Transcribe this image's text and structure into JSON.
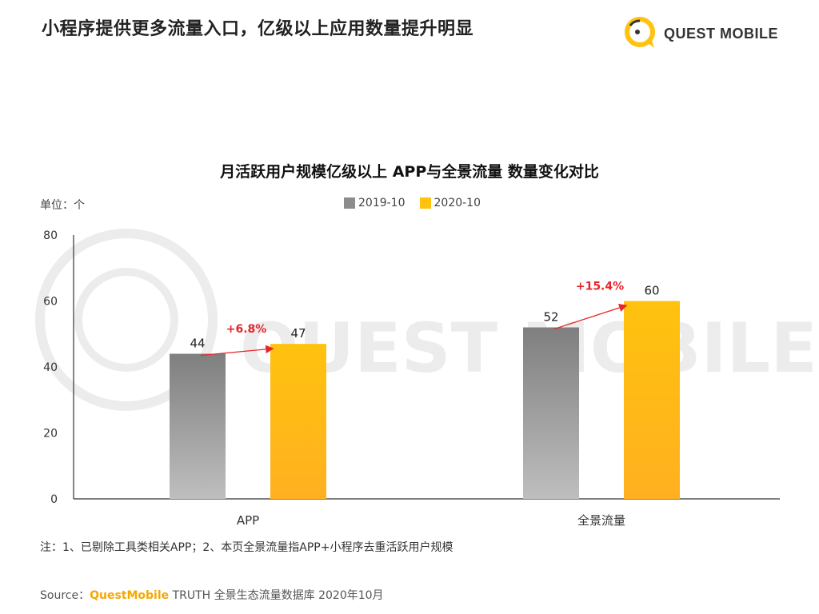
{
  "page": {
    "title": "小程序提供更多流量入口，亿级以上应用数量提升明显",
    "note": "注：1、已剔除工具类相关APP；2、本页全景流量指APP+小程序去重活跃用户规模",
    "source_prefix": "Source：",
    "source_brand": "QuestMobile",
    "source_rest": " TRUTH 全景生态流量数据库 2020年10月"
  },
  "logo": {
    "text": "QUEST MOBILE",
    "watermark": "QUEST MOBILE"
  },
  "colors": {
    "accent": "#FFC20E",
    "gray": "#8C8C8C",
    "change": "#E8242B"
  },
  "chart_data": {
    "type": "bar",
    "title": "月活跃用户规模亿级以上 APP与全景流量 数量变化对比",
    "unit_label": "单位：个",
    "categories": [
      "APP",
      "全景流量"
    ],
    "series": [
      {
        "name": "2019-10",
        "values": [
          44,
          52
        ],
        "color": "#8C8C8C"
      },
      {
        "name": "2020-10",
        "values": [
          47,
          60
        ],
        "color": "#FFC20E"
      }
    ],
    "changes": [
      "+6.8%",
      "+15.4%"
    ],
    "ylim": [
      0,
      80
    ],
    "yticks": [
      0,
      20,
      40,
      60,
      80
    ],
    "grid": false,
    "legend": "top-center"
  }
}
